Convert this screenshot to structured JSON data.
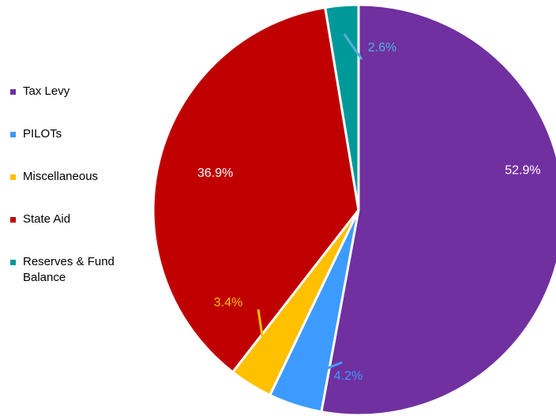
{
  "chart_data": {
    "type": "pie",
    "title": "",
    "categories": [
      "Tax Levy",
      "PILOTs",
      "Miscellaneous",
      "State Aid",
      "Reserves & Fund Balance"
    ],
    "values": [
      52.9,
      4.2,
      3.4,
      36.9,
      2.6
    ],
    "data_labels": [
      "52.9%",
      "4.2%",
      "3.4%",
      "36.9%",
      "2.6%"
    ],
    "colors": [
      "#7030A0",
      "#3D9BFF",
      "#FFC000",
      "#C00000",
      "#009999"
    ],
    "label_colors": [
      "#FFFFFF",
      "#3D9BFF",
      "#FFC000",
      "#FFFFFF",
      "#4FB3D9"
    ],
    "legend_placement": "left",
    "start_angle_deg": 0,
    "direction": "clockwise"
  }
}
